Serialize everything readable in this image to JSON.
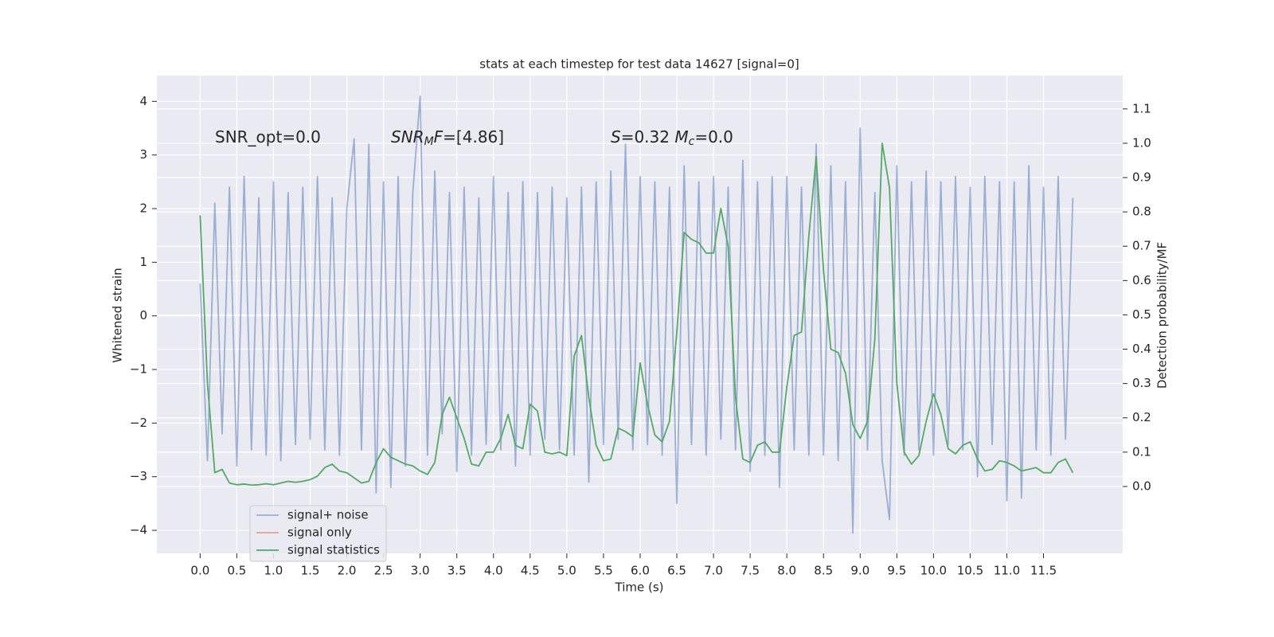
{
  "chart_data": {
    "type": "line",
    "title": "stats at each timestep for test data 14627 [signal=0]",
    "xlabel": "Time (s)",
    "ylabel": "Whitened strain",
    "y2label": "Detection probability/MF",
    "annotations": [
      {
        "parts": [
          {
            "text": "SNR_opt=0.0",
            "style": "normal"
          }
        ]
      },
      {
        "parts": [
          {
            "text": "SNR",
            "style": "italic"
          },
          {
            "text": "M",
            "style": "sub"
          },
          {
            "text": "F",
            "style": "italic"
          },
          {
            "text": "=[4.86]",
            "style": "normal"
          }
        ]
      },
      {
        "parts": [
          {
            "text": "S",
            "style": "italic"
          },
          {
            "text": "=0.32   ",
            "style": "normal"
          },
          {
            "text": "M",
            "style": "italic"
          },
          {
            "text": "c",
            "style": "sub"
          },
          {
            "text": "=0.0",
            "style": "normal"
          }
        ]
      }
    ],
    "x": [
      0,
      0.1,
      0.2,
      0.3,
      0.4,
      0.5,
      0.6,
      0.7,
      0.8,
      0.9,
      1,
      1.1,
      1.2,
      1.3,
      1.4,
      1.5,
      1.6,
      1.7,
      1.8,
      1.9,
      2,
      2.1,
      2.2,
      2.3,
      2.4,
      2.5,
      2.6,
      2.7,
      2.8,
      2.9,
      3,
      3.1,
      3.2,
      3.3,
      3.4,
      3.5,
      3.6,
      3.7,
      3.8,
      3.9,
      4,
      4.1,
      4.2,
      4.3,
      4.4,
      4.5,
      4.6,
      4.7,
      4.8,
      4.9,
      5,
      5.1,
      5.2,
      5.3,
      5.4,
      5.5,
      5.6,
      5.7,
      5.8,
      5.9,
      6,
      6.1,
      6.2,
      6.3,
      6.4,
      6.5,
      6.6,
      6.7,
      6.8,
      6.9,
      7,
      7.1,
      7.2,
      7.3,
      7.4,
      7.5,
      7.6,
      7.7,
      7.8,
      7.9,
      8,
      8.1,
      8.2,
      8.3,
      8.4,
      8.5,
      8.6,
      8.7,
      8.8,
      8.9,
      9,
      9.1,
      9.2,
      9.3,
      9.4,
      9.5,
      9.6,
      9.7,
      9.8,
      9.9,
      10,
      10.1,
      10.2,
      10.3,
      10.4,
      10.5,
      10.6,
      10.7,
      10.8,
      10.9,
      11,
      11.1,
      11.2,
      11.3,
      11.4,
      11.5,
      11.6,
      11.7,
      11.8,
      11.9
    ],
    "series": [
      {
        "name": "signal+ noise",
        "color": "#4c72b0",
        "opacity": 0.5,
        "axis": "y",
        "values": [
          0.6,
          -2.7,
          2.1,
          -2.2,
          2.4,
          -2.8,
          2.6,
          -2.5,
          2.2,
          -2.6,
          2.5,
          -2.7,
          2.3,
          -2.4,
          2.4,
          -2.3,
          2.6,
          -2.5,
          2.2,
          -2.6,
          2.0,
          3.3,
          -2.5,
          3.2,
          -3.3,
          2.5,
          -3.2,
          2.6,
          -2.8,
          2.3,
          4.1,
          -2.6,
          2.7,
          -2.2,
          2.3,
          -2.9,
          2.4,
          -2.6,
          2.2,
          -2.4,
          2.6,
          -2.5,
          2.3,
          -2.8,
          2.5,
          -2.6,
          2.3,
          -2.3,
          2.4,
          -2.5,
          2.2,
          -2.6,
          2.4,
          -3.1,
          2.5,
          -2.4,
          2.7,
          -2.3,
          3.2,
          -2.5,
          2.6,
          -2.4,
          2.5,
          -2.6,
          2.4,
          -3.5,
          2.8,
          -2.4,
          2.5,
          -2.6,
          2.6,
          -2.3,
          2.4,
          -2.5,
          2.9,
          -2.9,
          2.5,
          -2.6,
          2.6,
          -3.2,
          2.6,
          -2.5,
          2.4,
          -2.6,
          3.2,
          -2.6,
          2.8,
          -2.7,
          2.5,
          -4.05,
          3.5,
          -2.5,
          2.3,
          -2.7,
          -3.8,
          2.8,
          -2.6,
          2.5,
          -2.5,
          2.7,
          -2.6,
          2.5,
          -2.4,
          2.6,
          -2.5,
          2.4,
          -3.0,
          2.6,
          -2.4,
          2.5,
          -3.45,
          2.5,
          -3.4,
          2.8,
          -2.5,
          2.4,
          -2.6,
          2.6,
          -2.3,
          2.2
        ]
      },
      {
        "name": "signal only",
        "color": "#dd8452",
        "opacity": 0.7,
        "axis": "y",
        "x": [],
        "values": []
      },
      {
        "name": "signal statistics",
        "color": "#55a868",
        "opacity": 1,
        "axis": "y2",
        "values": [
          0.79,
          0.3,
          0.04,
          0.05,
          0.01,
          0.005,
          0.007,
          0.004,
          0.005,
          0.008,
          0.005,
          0.01,
          0.015,
          0.012,
          0.015,
          0.02,
          0.03,
          0.055,
          0.065,
          0.045,
          0.04,
          0.025,
          0.01,
          0.015,
          0.07,
          0.11,
          0.085,
          0.075,
          0.065,
          0.06,
          0.045,
          0.035,
          0.07,
          0.21,
          0.26,
          0.2,
          0.14,
          0.065,
          0.06,
          0.1,
          0.1,
          0.14,
          0.21,
          0.12,
          0.11,
          0.24,
          0.22,
          0.1,
          0.095,
          0.1,
          0.09,
          0.38,
          0.44,
          0.26,
          0.12,
          0.075,
          0.08,
          0.17,
          0.16,
          0.145,
          0.36,
          0.24,
          0.15,
          0.13,
          0.19,
          0.45,
          0.74,
          0.72,
          0.71,
          0.68,
          0.68,
          0.81,
          0.7,
          0.26,
          0.08,
          0.07,
          0.12,
          0.13,
          0.1,
          0.1,
          0.29,
          0.44,
          0.45,
          0.73,
          0.96,
          0.63,
          0.4,
          0.39,
          0.33,
          0.18,
          0.14,
          0.19,
          0.43,
          1.0,
          0.87,
          0.3,
          0.1,
          0.065,
          0.09,
          0.19,
          0.27,
          0.21,
          0.11,
          0.095,
          0.12,
          0.13,
          0.08,
          0.045,
          0.05,
          0.075,
          0.07,
          0.06,
          0.045,
          0.05,
          0.055,
          0.04,
          0.04,
          0.07,
          0.08,
          0.04
        ]
      }
    ],
    "xlim": [
      -0.59,
      12.58
    ],
    "ylim": [
      -4.43,
      4.48
    ],
    "y2lim": [
      -0.195,
      1.197
    ],
    "xticks": [
      {
        "value": 0,
        "label": "0.0"
      },
      0.5,
      {
        "value": 1,
        "label": "1.0"
      },
      1.5,
      {
        "value": 2,
        "label": "2.0"
      },
      2.5,
      {
        "value": 3,
        "label": "3.0"
      },
      3.5,
      {
        "value": 4,
        "label": "4.0"
      },
      4.5,
      {
        "value": 5,
        "label": "5.0"
      },
      5.5,
      {
        "value": 6,
        "label": "6.0"
      },
      6.5,
      {
        "value": 7,
        "label": "7.0"
      },
      7.5,
      {
        "value": 8,
        "label": "8.0"
      },
      8.5,
      {
        "value": 9,
        "label": "9.0"
      },
      9.5,
      {
        "value": 10,
        "label": "10.0"
      },
      10.5,
      {
        "value": 11,
        "label": "11.0"
      },
      11.5
    ],
    "yticks": [
      {
        "value": -4,
        "label": "−4"
      },
      {
        "value": -3,
        "label": "−3"
      },
      {
        "value": -2,
        "label": "−2"
      },
      {
        "value": -1,
        "label": "−1"
      },
      0,
      1,
      2,
      3,
      4
    ],
    "y2ticks": [
      {
        "value": 0,
        "label": "0.0"
      },
      0.1,
      0.2,
      0.3,
      0.4,
      0.5,
      0.6,
      0.7,
      0.8,
      0.9,
      {
        "value": 1,
        "label": "1.0"
      },
      1.1
    ],
    "grid": true
  }
}
